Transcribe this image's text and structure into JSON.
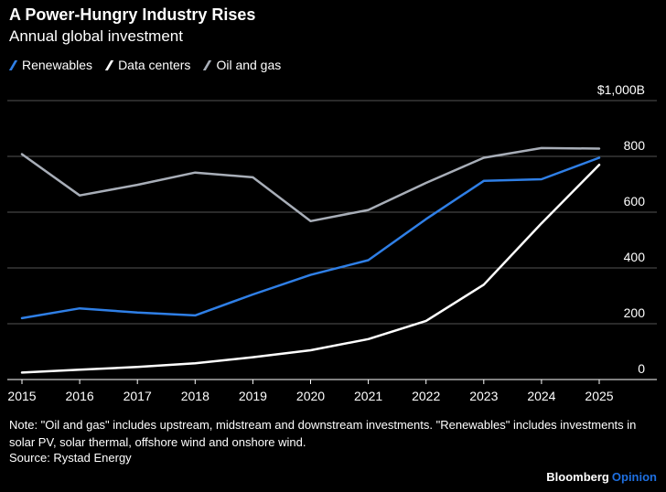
{
  "header": {
    "title": "A Power-Hungry Industry Rises",
    "subtitle": "Annual global investment"
  },
  "colors": {
    "background": "#000000",
    "grid": "#555555",
    "renewables": "#2f7fe6",
    "data_centers": "#ffffff",
    "oil_and_gas": "#a8aeb8",
    "brand_accent": "#1e6fe0"
  },
  "chart_data": {
    "type": "line",
    "title": "A Power-Hungry Industry Rises",
    "subtitle": "Annual global investment",
    "xlabel": "",
    "ylabel": "",
    "x": [
      2015,
      2016,
      2017,
      2018,
      2019,
      2020,
      2021,
      2022,
      2023,
      2024,
      2025
    ],
    "x_tick_labels": [
      "2015",
      "2016",
      "2017",
      "2018",
      "2019",
      "2020",
      "2021",
      "2022",
      "2023",
      "2024",
      "2025"
    ],
    "ylim": [
      0,
      1000
    ],
    "y_ticks": [
      0,
      200,
      400,
      600,
      800,
      1000
    ],
    "y_tick_labels": [
      "0",
      "200",
      "400",
      "600",
      "800",
      "$1,000B"
    ],
    "grid": true,
    "legend_position": "top-left",
    "series": [
      {
        "name": "Renewables",
        "key": "renewables",
        "values": [
          220,
          255,
          240,
          230,
          305,
          375,
          428,
          575,
          712,
          718,
          795
        ]
      },
      {
        "name": "Data centers",
        "key": "data_centers",
        "values": [
          25,
          35,
          45,
          58,
          80,
          105,
          145,
          210,
          340,
          560,
          770
        ]
      },
      {
        "name": "Oil and gas",
        "key": "oil_and_gas",
        "values": [
          808,
          660,
          698,
          742,
          725,
          568,
          608,
          705,
          795,
          830,
          828
        ]
      }
    ]
  },
  "footer": {
    "note": "Note: \"Oil and gas\" includes upstream, midstream and downstream investments. \"Renewables\" includes investments in solar PV, solar thermal, offshore wind and onshore wind.",
    "source": "Source: Rystad Energy",
    "brand_main": "Bloomberg",
    "brand_sub": "Opinion"
  }
}
